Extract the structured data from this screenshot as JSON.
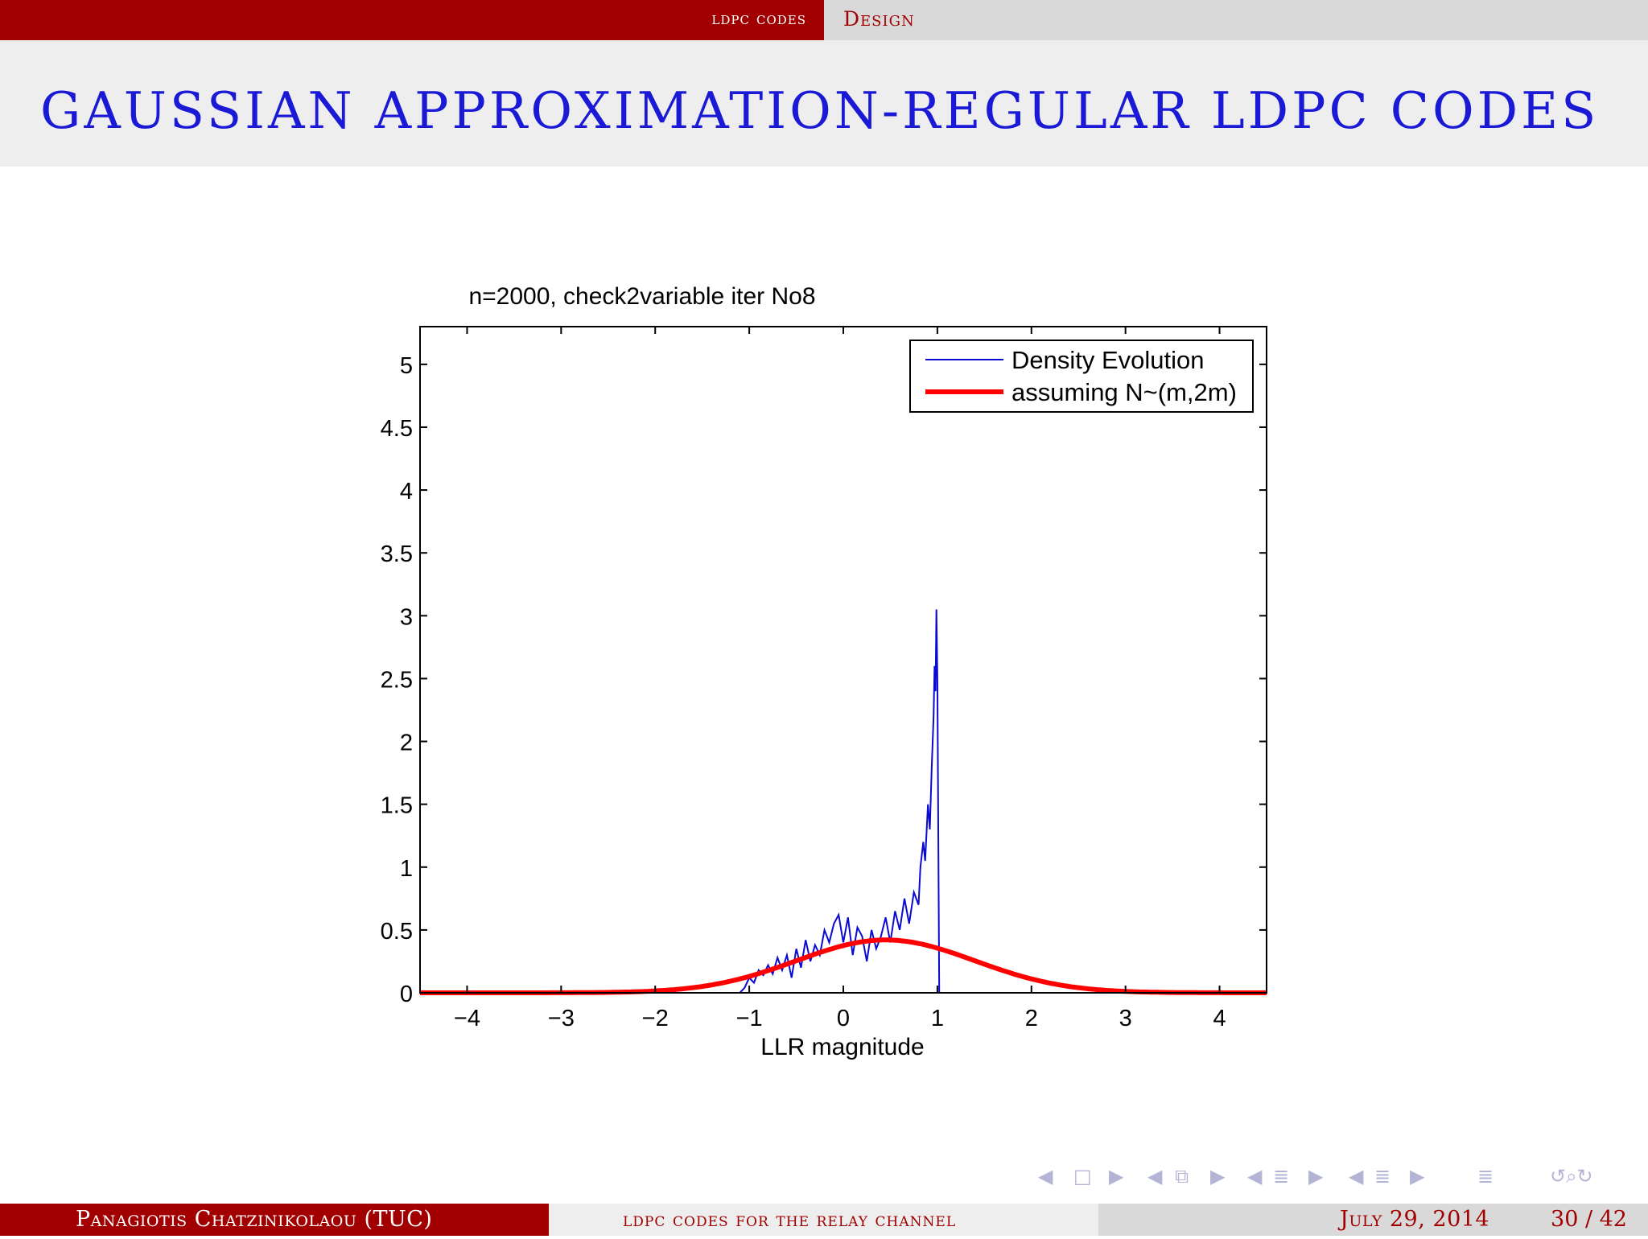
{
  "header": {
    "section": "ldpc codes",
    "subsection": "Design"
  },
  "frame_title": "GAUSSIAN APPROXIMATION-REGULAR LDPC CODES",
  "chart_data": {
    "type": "line",
    "title": "n=2000, check2variable iter No8",
    "xlabel": "LLR magnitude",
    "ylabel": "",
    "xlim": [
      -4.5,
      4.5
    ],
    "ylim": [
      0,
      5.3
    ],
    "xticks": [
      -4,
      -3,
      -2,
      -1,
      0,
      1,
      2,
      3,
      4
    ],
    "xtick_labels": [
      "−4",
      "−3",
      "−2",
      "−1",
      "0",
      "1",
      "2",
      "3",
      "4"
    ],
    "yticks": [
      0,
      0.5,
      1,
      1.5,
      2,
      2.5,
      3,
      3.5,
      4,
      4.5,
      5
    ],
    "ytick_labels": [
      "0",
      "0.5",
      "1",
      "1.5",
      "2",
      "2.5",
      "3",
      "3.5",
      "4",
      "4.5",
      "5"
    ],
    "grid": false,
    "legend_position": "top-right",
    "series": [
      {
        "name": "Density Evolution",
        "color": "#0a0ad2",
        "x": [
          -4.5,
          -1.1,
          -1.05,
          -1.0,
          -0.95,
          -0.9,
          -0.85,
          -0.8,
          -0.75,
          -0.7,
          -0.65,
          -0.6,
          -0.55,
          -0.5,
          -0.45,
          -0.4,
          -0.35,
          -0.3,
          -0.25,
          -0.2,
          -0.15,
          -0.1,
          -0.05,
          0.0,
          0.05,
          0.1,
          0.15,
          0.2,
          0.25,
          0.3,
          0.35,
          0.4,
          0.45,
          0.5,
          0.55,
          0.6,
          0.65,
          0.7,
          0.75,
          0.8,
          0.82,
          0.85,
          0.87,
          0.9,
          0.92,
          0.94,
          0.96,
          0.97,
          0.98,
          0.99,
          1.0,
          1.02,
          1.05,
          4.5
        ],
        "y": [
          0,
          0,
          0.04,
          0.12,
          0.08,
          0.18,
          0.14,
          0.22,
          0.15,
          0.28,
          0.18,
          0.3,
          0.12,
          0.35,
          0.2,
          0.42,
          0.25,
          0.38,
          0.3,
          0.5,
          0.4,
          0.55,
          0.62,
          0.4,
          0.6,
          0.3,
          0.52,
          0.45,
          0.25,
          0.5,
          0.35,
          0.45,
          0.6,
          0.4,
          0.65,
          0.5,
          0.75,
          0.55,
          0.8,
          0.7,
          1.0,
          1.2,
          1.05,
          1.5,
          1.3,
          1.8,
          2.2,
          2.6,
          2.4,
          3.05,
          2.5,
          0.0,
          0.0,
          0
        ]
      },
      {
        "name": "assuming N~(m,2m)",
        "color": "#ff0000",
        "mean": 0.45,
        "variance": 0.9
      }
    ]
  },
  "nav_symbols": {
    "frame": [
      "◀",
      "□",
      "▶"
    ],
    "subsection": [
      "◀",
      "⧉",
      "▶"
    ],
    "section": [
      "◀",
      "≣",
      "▶"
    ],
    "part": [
      "◀",
      "≣",
      "▶"
    ],
    "doc": "≣",
    "controls": "↺⌕↻"
  },
  "footer": {
    "author": "Panagiotis Chatzinikolaou  (TUC)",
    "short_title": "ldpc codes for the relay channel",
    "date": "July 29, 2014",
    "page": "30 / 42"
  }
}
